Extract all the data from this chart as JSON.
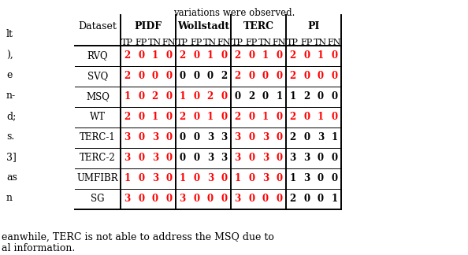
{
  "methods": [
    "PIDF",
    "Wollstadt",
    "TERC",
    "PI"
  ],
  "sub_cols": [
    "TP",
    "FP",
    "TN",
    "FN"
  ],
  "datasets": [
    "RVQ",
    "SVQ",
    "MSQ",
    "WT",
    "TERC-1",
    "TERC-2",
    "UMFIBR",
    "SG"
  ],
  "table_data": {
    "PIDF": {
      "RVQ": [
        [
          2,
          "r"
        ],
        [
          0,
          "r"
        ],
        [
          1,
          "r"
        ],
        [
          0,
          "r"
        ]
      ],
      "SVQ": [
        [
          2,
          "r"
        ],
        [
          0,
          "r"
        ],
        [
          0,
          "r"
        ],
        [
          0,
          "r"
        ]
      ],
      "MSQ": [
        [
          1,
          "r"
        ],
        [
          0,
          "r"
        ],
        [
          2,
          "r"
        ],
        [
          0,
          "r"
        ]
      ],
      "WT": [
        [
          2,
          "r"
        ],
        [
          0,
          "r"
        ],
        [
          1,
          "r"
        ],
        [
          0,
          "r"
        ]
      ],
      "TERC-1": [
        [
          3,
          "r"
        ],
        [
          0,
          "r"
        ],
        [
          3,
          "r"
        ],
        [
          0,
          "r"
        ]
      ],
      "TERC-2": [
        [
          3,
          "r"
        ],
        [
          0,
          "r"
        ],
        [
          3,
          "r"
        ],
        [
          0,
          "r"
        ]
      ],
      "UMFIBR": [
        [
          1,
          "r"
        ],
        [
          0,
          "r"
        ],
        [
          3,
          "r"
        ],
        [
          0,
          "r"
        ]
      ],
      "SG": [
        [
          3,
          "r"
        ],
        [
          0,
          "r"
        ],
        [
          0,
          "r"
        ],
        [
          0,
          "r"
        ]
      ]
    },
    "Wollstadt": {
      "RVQ": [
        [
          2,
          "r"
        ],
        [
          0,
          "r"
        ],
        [
          1,
          "r"
        ],
        [
          0,
          "r"
        ]
      ],
      "SVQ": [
        [
          0,
          "k"
        ],
        [
          0,
          "k"
        ],
        [
          0,
          "k"
        ],
        [
          2,
          "k"
        ]
      ],
      "MSQ": [
        [
          1,
          "r"
        ],
        [
          0,
          "r"
        ],
        [
          2,
          "r"
        ],
        [
          0,
          "r"
        ]
      ],
      "WT": [
        [
          2,
          "r"
        ],
        [
          0,
          "r"
        ],
        [
          1,
          "r"
        ],
        [
          0,
          "r"
        ]
      ],
      "TERC-1": [
        [
          0,
          "k"
        ],
        [
          0,
          "k"
        ],
        [
          3,
          "k"
        ],
        [
          3,
          "k"
        ]
      ],
      "TERC-2": [
        [
          0,
          "k"
        ],
        [
          0,
          "k"
        ],
        [
          3,
          "k"
        ],
        [
          3,
          "k"
        ]
      ],
      "UMFIBR": [
        [
          1,
          "r"
        ],
        [
          0,
          "r"
        ],
        [
          3,
          "r"
        ],
        [
          0,
          "r"
        ]
      ],
      "SG": [
        [
          3,
          "r"
        ],
        [
          0,
          "r"
        ],
        [
          0,
          "r"
        ],
        [
          0,
          "r"
        ]
      ]
    },
    "TERC": {
      "RVQ": [
        [
          2,
          "r"
        ],
        [
          0,
          "r"
        ],
        [
          1,
          "r"
        ],
        [
          0,
          "r"
        ]
      ],
      "SVQ": [
        [
          2,
          "r"
        ],
        [
          0,
          "r"
        ],
        [
          0,
          "r"
        ],
        [
          0,
          "r"
        ]
      ],
      "MSQ": [
        [
          0,
          "k"
        ],
        [
          2,
          "k"
        ],
        [
          0,
          "k"
        ],
        [
          1,
          "k"
        ]
      ],
      "WT": [
        [
          2,
          "r"
        ],
        [
          0,
          "r"
        ],
        [
          1,
          "r"
        ],
        [
          0,
          "r"
        ]
      ],
      "TERC-1": [
        [
          3,
          "r"
        ],
        [
          0,
          "r"
        ],
        [
          3,
          "r"
        ],
        [
          0,
          "r"
        ]
      ],
      "TERC-2": [
        [
          3,
          "r"
        ],
        [
          0,
          "r"
        ],
        [
          3,
          "r"
        ],
        [
          0,
          "r"
        ]
      ],
      "UMFIBR": [
        [
          1,
          "r"
        ],
        [
          0,
          "r"
        ],
        [
          3,
          "r"
        ],
        [
          0,
          "r"
        ]
      ],
      "SG": [
        [
          3,
          "r"
        ],
        [
          0,
          "r"
        ],
        [
          0,
          "r"
        ],
        [
          0,
          "r"
        ]
      ]
    },
    "PI": {
      "RVQ": [
        [
          2,
          "r"
        ],
        [
          0,
          "r"
        ],
        [
          1,
          "r"
        ],
        [
          0,
          "r"
        ]
      ],
      "SVQ": [
        [
          2,
          "r"
        ],
        [
          0,
          "r"
        ],
        [
          0,
          "r"
        ],
        [
          0,
          "r"
        ]
      ],
      "MSQ": [
        [
          1,
          "k"
        ],
        [
          2,
          "k"
        ],
        [
          0,
          "k"
        ],
        [
          0,
          "k"
        ]
      ],
      "WT": [
        [
          2,
          "r"
        ],
        [
          0,
          "r"
        ],
        [
          1,
          "r"
        ],
        [
          0,
          "r"
        ]
      ],
      "TERC-1": [
        [
          2,
          "k"
        ],
        [
          0,
          "k"
        ],
        [
          3,
          "k"
        ],
        [
          1,
          "k"
        ]
      ],
      "TERC-2": [
        [
          3,
          "k"
        ],
        [
          3,
          "k"
        ],
        [
          0,
          "k"
        ],
        [
          0,
          "k"
        ]
      ],
      "UMFIBR": [
        [
          1,
          "k"
        ],
        [
          3,
          "k"
        ],
        [
          0,
          "k"
        ],
        [
          0,
          "k"
        ]
      ],
      "SG": [
        [
          2,
          "k"
        ],
        [
          0,
          "k"
        ],
        [
          0,
          "k"
        ],
        [
          1,
          "k"
        ]
      ]
    }
  },
  "page_text_top": "variations were observed.",
  "page_text_left": [
    "lt",
    "),",
    "e",
    "n-",
    "d;",
    "s.",
    "3]",
    "as",
    "n"
  ],
  "page_text_bottom1": "eanwhile, TERC is not able to address the MSQ due to",
  "page_text_bottom2": "al information.",
  "bg_color": "#ffffff",
  "text_color": "#000000",
  "red_color": "#ff0000",
  "font_size": 8.5,
  "header_font_size": 9.0,
  "line_color": "#000000",
  "lw_thick": 1.4,
  "lw_thin": 0.7
}
